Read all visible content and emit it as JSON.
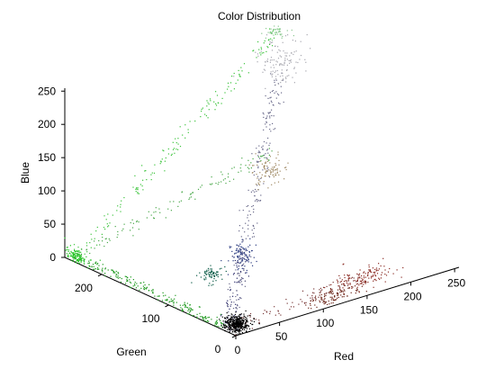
{
  "chart_data": {
    "type": "scatter",
    "dimension": "3d",
    "title": "Color Distribution",
    "xlabel": "Red",
    "ylabel": "Green",
    "zlabel": "Blue",
    "xlim": [
      0,
      255
    ],
    "ylim": [
      0,
      255
    ],
    "zlim": [
      0,
      255
    ],
    "x_ticks": [
      0,
      50,
      100,
      150,
      200,
      250
    ],
    "y_ticks": [
      0,
      100,
      200
    ],
    "z_ticks": [
      0,
      50,
      100,
      150,
      200,
      250
    ],
    "grid": false,
    "legend": "none",
    "clusters": [
      {
        "center": [
          10,
          12,
          8
        ],
        "spread": [
          6,
          6,
          6
        ],
        "count": 420,
        "color": "#000000"
      },
      {
        "center": [
          150,
          8,
          22
        ],
        "spread": [
          18,
          4,
          8
        ],
        "count": 130,
        "color": "#8a2a22"
      },
      {
        "center": [
          120,
          10,
          8
        ],
        "spread": [
          16,
          4,
          6
        ],
        "count": 110,
        "color": "#6a2418"
      },
      {
        "center": [
          45,
          95,
          30
        ],
        "spread": [
          6,
          5,
          5
        ],
        "count": 70,
        "color": "#0a5a46"
      },
      {
        "center": [
          40,
          45,
          85
        ],
        "spread": [
          6,
          6,
          10
        ],
        "count": 90,
        "color": "#2a3a80"
      },
      {
        "center": [
          130,
          120,
          140
        ],
        "spread": [
          8,
          8,
          10
        ],
        "count": 90,
        "color": "#a08a64"
      },
      {
        "center": [
          215,
          215,
          225
        ],
        "spread": [
          12,
          10,
          14
        ],
        "count": 120,
        "color": "#a8a8b0"
      },
      {
        "center": [
          230,
          240,
          255
        ],
        "spread": [
          6,
          6,
          5
        ],
        "count": 40,
        "color": "#8ac890"
      },
      {
        "center": [
          0,
          240,
          8
        ],
        "spread": [
          4,
          8,
          5
        ],
        "count": 110,
        "color": "#22c422"
      }
    ],
    "trails": [
      {
        "from": [
          0,
          240,
          8
        ],
        "to": [
          240,
          245,
          255
        ],
        "count": 170,
        "color": "#3cc43c"
      },
      {
        "from": [
          0,
          240,
          8
        ],
        "to": [
          0,
          20,
          5
        ],
        "count": 220,
        "color": "#1e9a1e"
      },
      {
        "from": [
          0,
          240,
          8
        ],
        "to": [
          210,
          220,
          90
        ],
        "count": 110,
        "color": "#4aa84a"
      },
      {
        "from": [
          0,
          10,
          5
        ],
        "to": [
          200,
          200,
          215
        ],
        "count": 230,
        "color": "#6a6a8a"
      },
      {
        "from": [
          0,
          10,
          5
        ],
        "to": [
          150,
          10,
          25
        ],
        "count": 90,
        "color": "#7a3a3a"
      },
      {
        "from": [
          0,
          10,
          5
        ],
        "to": [
          40,
          45,
          85
        ],
        "count": 60,
        "color": "#2a2a6a"
      }
    ]
  }
}
